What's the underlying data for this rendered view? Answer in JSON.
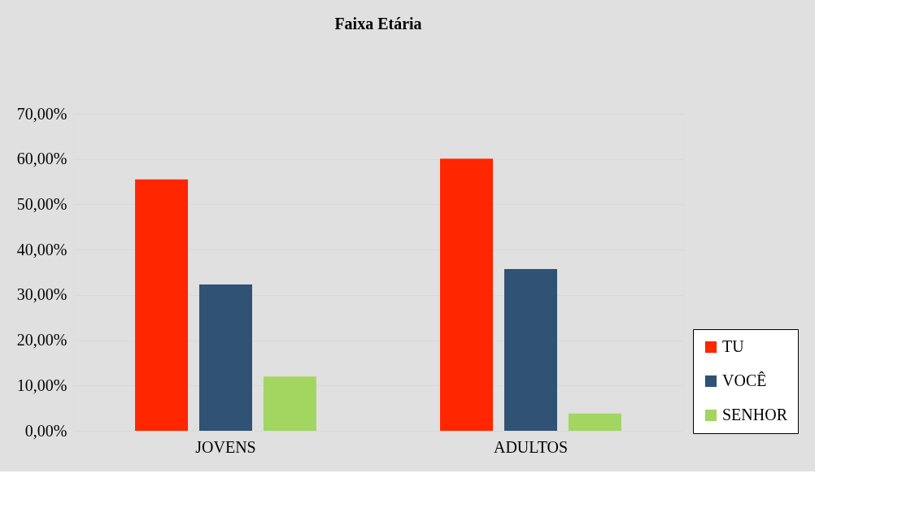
{
  "chart_data": {
    "type": "bar",
    "title": "Faixa Etária",
    "categories": [
      "JOVENS",
      "ADULTOS"
    ],
    "series": [
      {
        "name": "TU",
        "color": "#ff2600",
        "values": [
          55.5,
          60.1
        ]
      },
      {
        "name": "VOCÊ",
        "color": "#2f5275",
        "values": [
          32.3,
          35.7
        ]
      },
      {
        "name": "SENHOR",
        "color": "#a2d661",
        "values": [
          12.0,
          3.8
        ]
      }
    ],
    "ylim": [
      0,
      70
    ],
    "yticks": [
      {
        "value": 0,
        "label": "0,00%"
      },
      {
        "value": 10,
        "label": "10,00%"
      },
      {
        "value": 20,
        "label": "20,00%"
      },
      {
        "value": 30,
        "label": "30,00%"
      },
      {
        "value": 40,
        "label": "40,00%"
      },
      {
        "value": 50,
        "label": "50,00%"
      },
      {
        "value": 60,
        "label": "60,00%"
      },
      {
        "value": 70,
        "label": "70,00%"
      }
    ],
    "grid": "y",
    "legend": "bottom right"
  }
}
